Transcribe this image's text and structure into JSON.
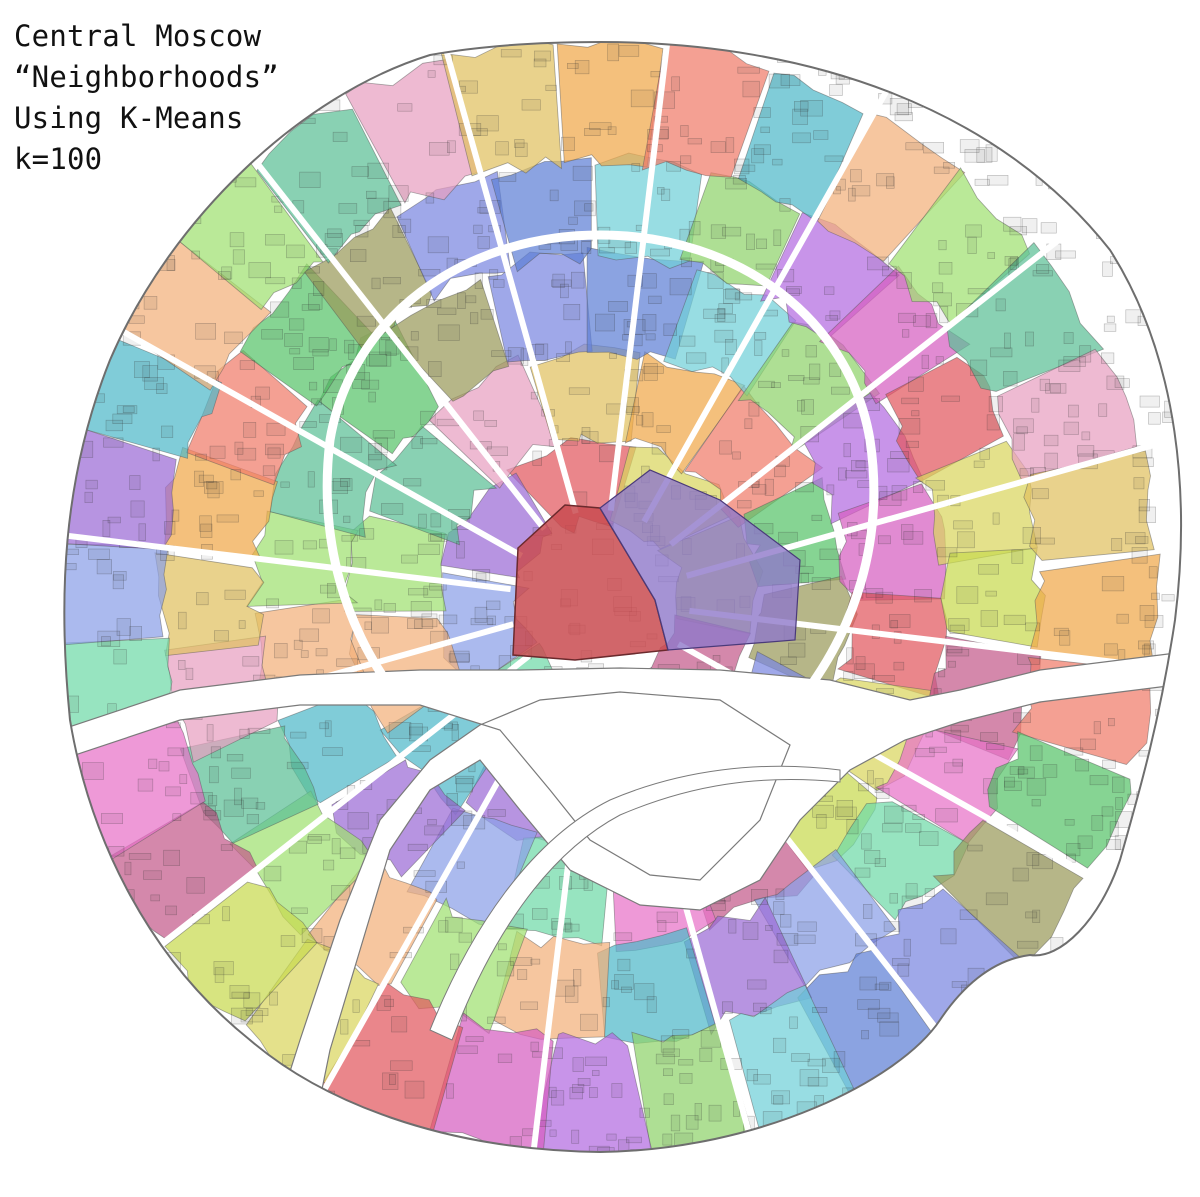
{
  "title": {
    "lines": [
      "Central Moscow",
      "“Neighborhoods”",
      "Using K-Means",
      "k=100"
    ]
  },
  "map": {
    "subject": "Central Moscow street and building map colored by cluster",
    "cluster_count": 100,
    "colors": {
      "background": "#ffffff",
      "river": "#ffffff",
      "street": "#ffffff",
      "outline": "#4a4a4a",
      "palette": [
        "#e2585e",
        "#9b6bd6",
        "#f0a84a",
        "#8fd36b",
        "#e872c8",
        "#5bbf95",
        "#7a86e0",
        "#d9d65e",
        "#4fb8c9",
        "#f07b6a",
        "#b36be0",
        "#6fd9a8",
        "#e8a0c0",
        "#5e7fd6",
        "#c7d94f",
        "#f2b07a",
        "#58c46a",
        "#d65ec0",
        "#8aa0e8",
        "#e0c060",
        "#70d0d8",
        "#c35a8a",
        "#a0e070",
        "#9a9a5a"
      ]
    },
    "features": [
      {
        "name": "kremlin-cluster",
        "color": "#c94b50"
      },
      {
        "name": "kitay-gorod-cluster",
        "color": "#8f78c9"
      },
      {
        "name": "moskva-river"
      },
      {
        "name": "vodootvodny-canal"
      },
      {
        "name": "garden-ring"
      },
      {
        "name": "boulevard-ring"
      }
    ]
  }
}
